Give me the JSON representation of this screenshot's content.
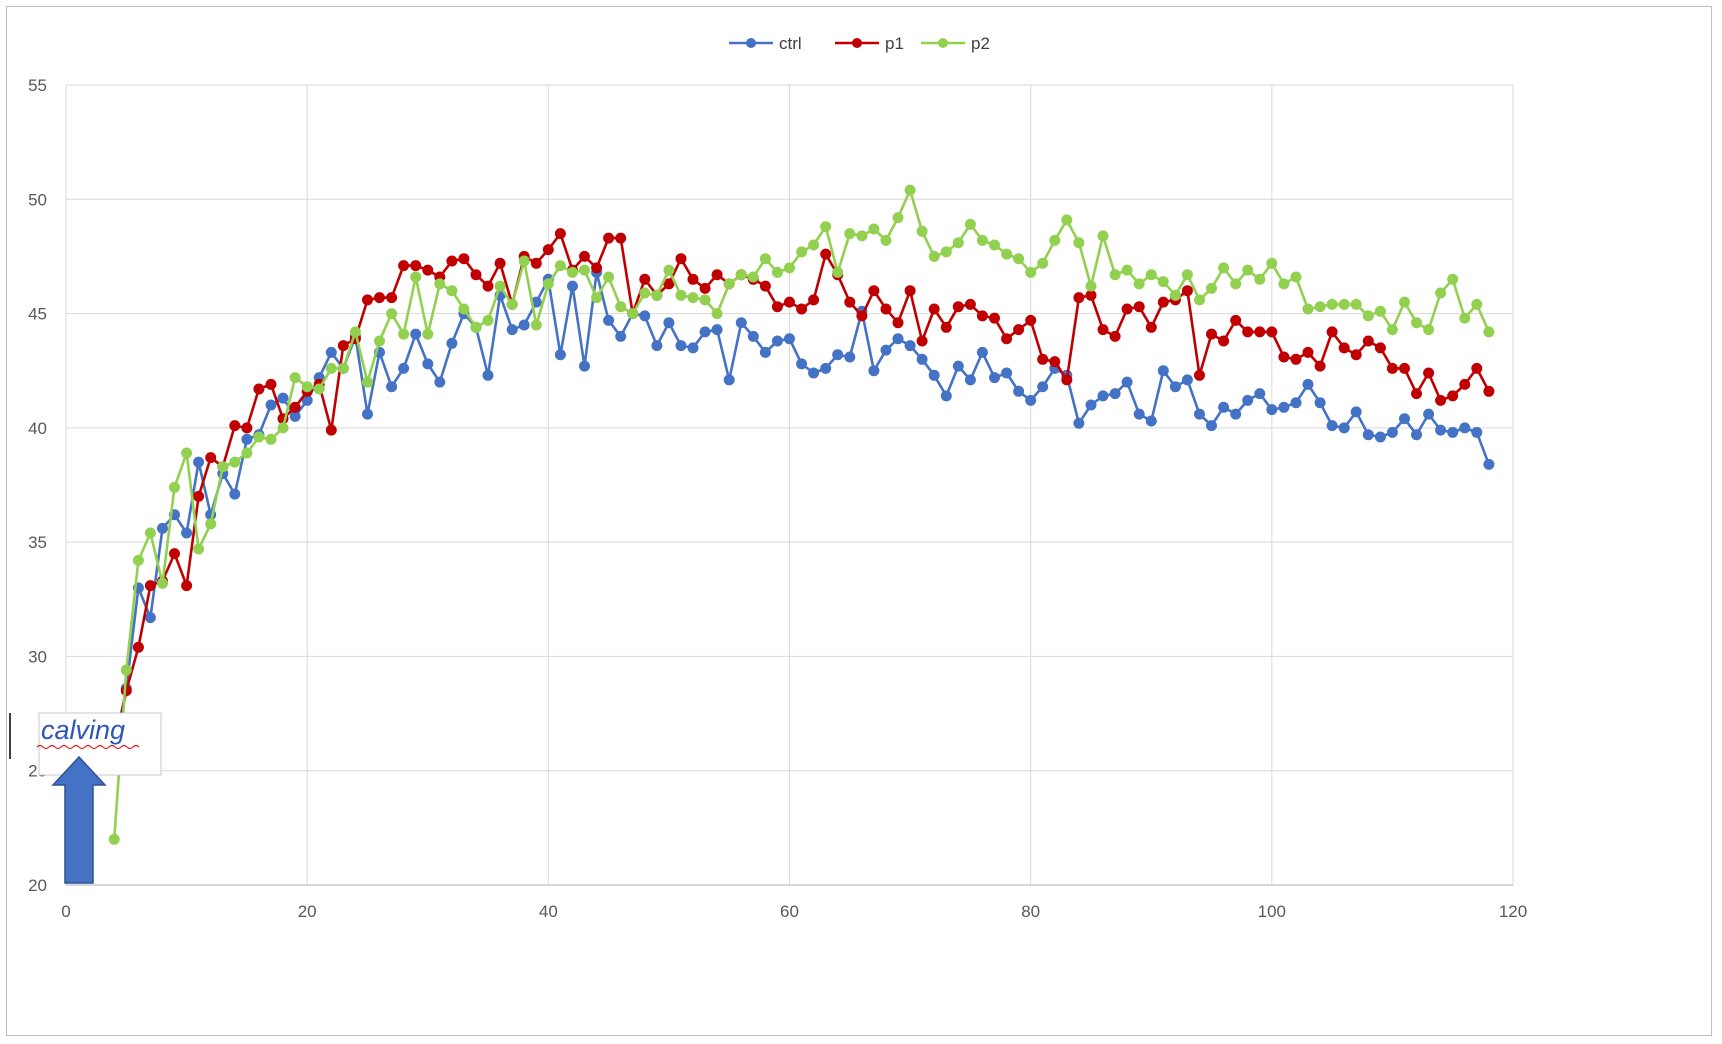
{
  "chart_data": {
    "type": "line",
    "title": "",
    "xlabel": "",
    "ylabel": "",
    "xlim": [
      0,
      120
    ],
    "ylim": [
      20,
      55
    ],
    "x_ticks": [
      0,
      20,
      40,
      60,
      80,
      100,
      120
    ],
    "y_ticks": [
      20,
      25,
      30,
      35,
      40,
      45,
      50,
      55
    ],
    "grid": true,
    "legend_position": "top",
    "annotation": {
      "text": "calving",
      "x": 2,
      "y": 22.5
    },
    "series": [
      {
        "name": "ctrl",
        "color": "#4472c4",
        "x": [
          4,
          5,
          6,
          7,
          8,
          9,
          10,
          11,
          12,
          13,
          14,
          15,
          16,
          17,
          18,
          19,
          20,
          21,
          22,
          23,
          24,
          25,
          26,
          27,
          28,
          29,
          30,
          31,
          32,
          33,
          34,
          35,
          36,
          37,
          38,
          39,
          40,
          41,
          42,
          43,
          44,
          45,
          46,
          47,
          48,
          49,
          50,
          51,
          52,
          53,
          54,
          55,
          56,
          57,
          58,
          59,
          60,
          61,
          62,
          63,
          64,
          65,
          66,
          67,
          68,
          69,
          70,
          71,
          72,
          73,
          74,
          75,
          76,
          77,
          78,
          79,
          80,
          81,
          82,
          83,
          84,
          85,
          86,
          87,
          88,
          89,
          90,
          91,
          92,
          93,
          94,
          95,
          96,
          97,
          98,
          99,
          100,
          101,
          102,
          103,
          104,
          105,
          106,
          107,
          108,
          109,
          110,
          111,
          112,
          113,
          114,
          115,
          116,
          117,
          118
        ],
        "values": [
          26.0,
          28.6,
          33.0,
          31.7,
          35.6,
          36.2,
          35.4,
          38.5,
          36.2,
          38.0,
          37.1,
          39.5,
          39.7,
          41.0,
          41.3,
          40.5,
          41.2,
          42.2,
          43.3,
          42.6,
          44.0,
          40.6,
          43.3,
          41.8,
          42.6,
          44.1,
          42.8,
          42.0,
          43.7,
          45.0,
          44.4,
          42.3,
          45.8,
          44.3,
          44.5,
          45.5,
          46.5,
          43.2,
          46.2,
          42.7,
          46.8,
          44.7,
          44.0,
          45.0,
          44.9,
          43.6,
          44.6,
          43.6,
          43.5,
          44.2,
          44.3,
          42.1,
          44.6,
          44.0,
          43.3,
          43.8,
          43.9,
          42.8,
          42.4,
          42.6,
          43.2,
          43.1,
          45.1,
          42.5,
          43.4,
          43.9,
          43.6,
          43.0,
          42.3,
          41.4,
          42.7,
          42.1,
          43.3,
          42.2,
          42.4,
          41.6,
          41.2,
          41.8,
          42.6,
          42.3,
          40.2,
          41.0,
          41.4,
          41.5,
          42.0,
          40.6,
          40.3,
          42.5,
          41.8,
          42.1,
          40.6,
          40.1,
          40.9,
          40.6,
          41.2,
          41.5,
          40.8,
          40.9,
          41.1,
          41.9,
          41.1,
          40.1,
          40.0,
          40.7,
          39.7,
          39.6,
          39.8,
          40.4,
          39.7,
          40.6,
          39.9,
          39.8,
          40.0,
          39.8,
          38.4
        ]
      },
      {
        "name": "p1",
        "color": "#c00000",
        "x": [
          4,
          5,
          6,
          7,
          8,
          9,
          10,
          11,
          12,
          13,
          14,
          15,
          16,
          17,
          18,
          19,
          20,
          21,
          22,
          23,
          24,
          25,
          26,
          27,
          28,
          29,
          30,
          31,
          32,
          33,
          34,
          35,
          36,
          37,
          38,
          39,
          40,
          41,
          42,
          43,
          44,
          45,
          46,
          47,
          48,
          49,
          50,
          51,
          52,
          53,
          54,
          55,
          56,
          57,
          58,
          59,
          60,
          61,
          62,
          63,
          64,
          65,
          66,
          67,
          68,
          69,
          70,
          71,
          72,
          73,
          74,
          75,
          76,
          77,
          78,
          79,
          80,
          81,
          82,
          83,
          84,
          85,
          86,
          87,
          88,
          89,
          90,
          91,
          92,
          93,
          94,
          95,
          96,
          97,
          98,
          99,
          100,
          101,
          102,
          103,
          104,
          105,
          106,
          107,
          108,
          109,
          110,
          111,
          112,
          113,
          114,
          115,
          116,
          117,
          118
        ],
        "values": [
          25.9,
          28.5,
          30.4,
          33.1,
          33.3,
          34.5,
          33.1,
          37.0,
          38.7,
          38.3,
          40.1,
          40.0,
          41.7,
          41.9,
          40.4,
          40.9,
          41.6,
          41.9,
          39.9,
          43.6,
          43.9,
          45.6,
          45.7,
          45.7,
          47.1,
          47.1,
          46.9,
          46.6,
          47.3,
          47.4,
          46.7,
          46.2,
          47.2,
          45.4,
          47.5,
          47.2,
          47.8,
          48.5,
          46.9,
          47.5,
          47.0,
          48.3,
          48.3,
          45.0,
          46.5,
          45.8,
          46.3,
          47.4,
          46.5,
          46.1,
          46.7,
          46.3,
          46.7,
          46.5,
          46.2,
          45.3,
          45.5,
          45.2,
          45.6,
          47.6,
          46.7,
          45.5,
          44.9,
          46.0,
          45.2,
          44.6,
          46.0,
          43.8,
          45.2,
          44.4,
          45.3,
          45.4,
          44.9,
          44.8,
          43.9,
          44.3,
          44.7,
          43.0,
          42.9,
          42.1,
          45.7,
          45.8,
          44.3,
          44.0,
          45.2,
          45.3,
          44.4,
          45.5,
          45.6,
          46.0,
          42.3,
          44.1,
          43.8,
          44.7,
          44.2,
          44.2,
          44.2,
          43.1,
          43.0,
          43.3,
          42.7,
          44.2,
          43.5,
          43.2,
          43.8,
          43.5,
          42.6,
          42.6,
          41.5,
          42.4,
          41.2,
          41.4,
          41.9,
          42.6,
          41.6
        ]
      },
      {
        "name": "p2",
        "color": "#92d050",
        "x": [
          4,
          5,
          6,
          7,
          8,
          9,
          10,
          11,
          12,
          13,
          14,
          15,
          16,
          17,
          18,
          19,
          20,
          21,
          22,
          23,
          24,
          25,
          26,
          27,
          28,
          29,
          30,
          31,
          32,
          33,
          34,
          35,
          36,
          37,
          38,
          39,
          40,
          41,
          42,
          43,
          44,
          45,
          46,
          47,
          48,
          49,
          50,
          51,
          52,
          53,
          54,
          55,
          56,
          57,
          58,
          59,
          60,
          61,
          62,
          63,
          64,
          65,
          66,
          67,
          68,
          69,
          70,
          71,
          72,
          73,
          74,
          75,
          76,
          77,
          78,
          79,
          80,
          81,
          82,
          83,
          84,
          85,
          86,
          87,
          88,
          89,
          90,
          91,
          92,
          93,
          94,
          95,
          96,
          97,
          98,
          99,
          100,
          101,
          102,
          103,
          104,
          105,
          106,
          107,
          108,
          109,
          110,
          111,
          112,
          113,
          114,
          115,
          116,
          117,
          118
        ],
        "values": [
          22.0,
          29.4,
          34.2,
          35.4,
          33.2,
          37.4,
          38.9,
          34.7,
          35.8,
          38.3,
          38.5,
          38.9,
          39.6,
          39.5,
          40.0,
          42.2,
          41.8,
          41.7,
          42.6,
          42.6,
          44.2,
          42.0,
          43.8,
          45.0,
          44.1,
          46.6,
          44.1,
          46.3,
          46.0,
          45.2,
          44.4,
          44.7,
          46.2,
          45.4,
          47.3,
          44.5,
          46.3,
          47.1,
          46.8,
          46.9,
          45.7,
          46.6,
          45.3,
          45.0,
          45.9,
          45.8,
          46.9,
          45.8,
          45.7,
          45.6,
          45.0,
          46.3,
          46.7,
          46.6,
          47.4,
          46.8,
          47.0,
          47.7,
          48.0,
          48.8,
          46.8,
          48.5,
          48.4,
          48.7,
          48.2,
          49.2,
          50.4,
          48.6,
          47.5,
          47.7,
          48.1,
          48.9,
          48.2,
          48.0,
          47.6,
          47.4,
          46.8,
          47.2,
          48.2,
          49.1,
          48.1,
          46.2,
          48.4,
          46.7,
          46.9,
          46.3,
          46.7,
          46.4,
          45.8,
          46.7,
          45.6,
          46.1,
          47.0,
          46.3,
          46.9,
          46.5,
          47.2,
          46.3,
          46.6,
          45.2,
          45.3,
          45.4,
          45.4,
          45.4,
          44.9,
          45.1,
          44.3,
          45.5,
          44.6,
          44.3,
          45.9,
          46.5,
          44.8,
          45.4,
          44.2
        ]
      }
    ]
  }
}
